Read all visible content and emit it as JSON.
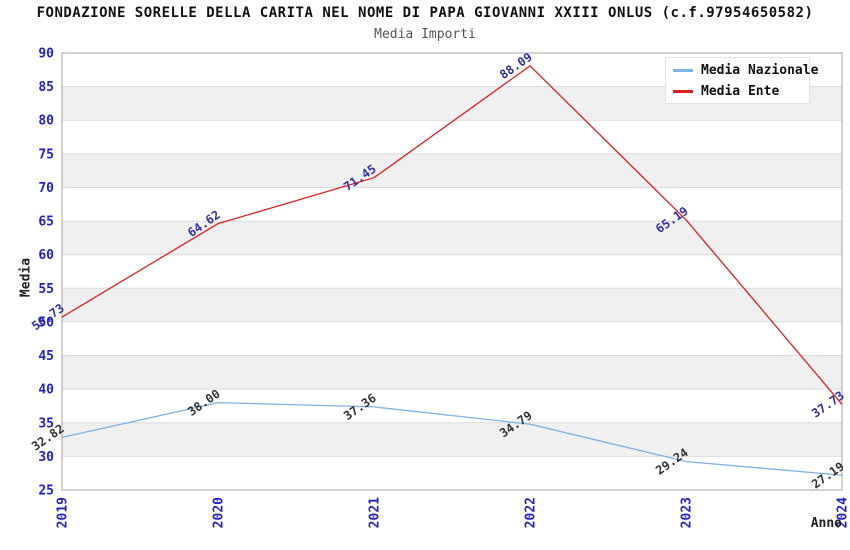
{
  "chart_data": {
    "type": "line",
    "title": "FONDAZIONE SORELLE DELLA CARITA NEL NOME DI PAPA GIOVANNI XXIII ONLUS (c.f.97954650582)",
    "subtitle": "Media Importi",
    "xlabel": "Anno",
    "ylabel": "Media",
    "x": [
      "2019",
      "2020",
      "2021",
      "2022",
      "2023",
      "2024"
    ],
    "series": [
      {
        "name": "Media Nazionale",
        "color": "#7FB2E5",
        "label_color": "#333333",
        "values": [
          32.82,
          38.0,
          37.36,
          34.79,
          29.24,
          27.19
        ],
        "point_labels": [
          "32.82",
          "38.00",
          "37.36",
          "34.79",
          "29.24",
          "27.19"
        ]
      },
      {
        "name": "Media Ente",
        "color": "#E02020",
        "label_color": "#3030A8",
        "values": [
          50.73,
          64.62,
          71.45,
          88.09,
          65.19,
          37.73
        ],
        "point_labels": [
          "50.73",
          "64.62",
          "71.45",
          "88.09",
          "65.19",
          "37.73"
        ]
      }
    ],
    "ylim": [
      25,
      90
    ],
    "ytick_step": 5,
    "grid": "horizontal-bands",
    "legend_position": "top-right",
    "colors": {
      "tick_label": "#2222CC",
      "band_gray": "#F0F0F0",
      "band_white": "#FFFFFF",
      "gridline": "#DCDCDC",
      "plot_border": "#A6A6A6"
    }
  }
}
